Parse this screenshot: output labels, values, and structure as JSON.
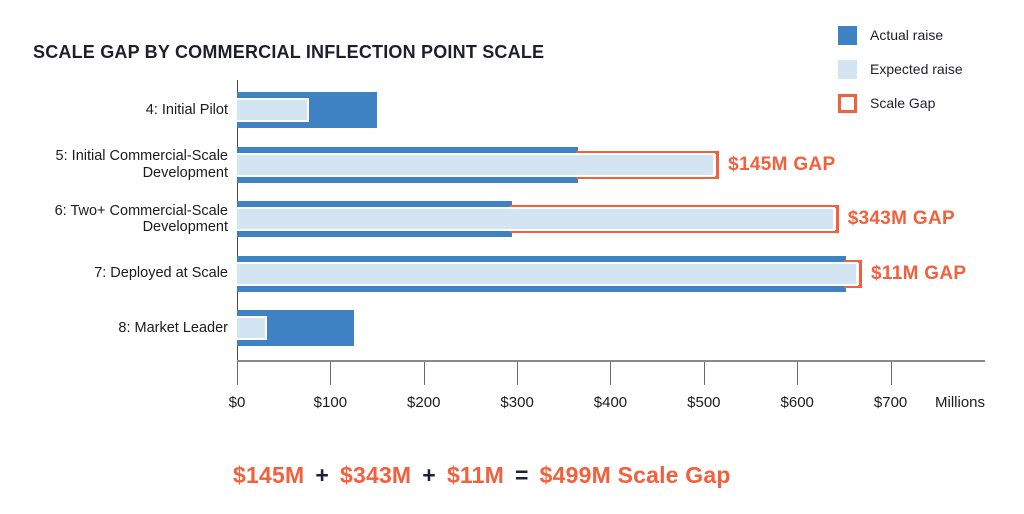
{
  "colors": {
    "actual_blue": "#3E82C4",
    "expected_blue": "#D3E5F2",
    "gap_orange": "#F2603C",
    "text_dark": "#1E1E2E",
    "axis_gray": "#8A8A8A"
  },
  "legend": {
    "items": [
      {
        "label": "Actual raise",
        "swatch": "actual-raise-swatch"
      },
      {
        "label": "Expected raise",
        "swatch": "expected-raise-swatch"
      },
      {
        "label": "Scale Gap",
        "swatch": "scale-gap-outline-swatch"
      }
    ]
  },
  "chart_data": {
    "type": "bar",
    "orientation": "horizontal",
    "title": "SCALE GAP BY COMMERCIAL INFLECTION POINT SCALE",
    "categories": [
      "4: Initial Pilot",
      "5: Initial Commercial-Scale Development",
      "6: Two+ Commercial-Scale Development",
      "7: Deployed at Scale",
      "8: Market Leader"
    ],
    "series": [
      {
        "name": "Actual raise",
        "values": [
          150,
          365,
          295,
          652,
          125
        ]
      },
      {
        "name": "Expected raise",
        "values": [
          75,
          510,
          638,
          663,
          30
        ]
      }
    ],
    "gap_annotations": [
      {
        "category_index": 1,
        "label": "$145M GAP",
        "value": 145
      },
      {
        "category_index": 2,
        "label": "$343M GAP",
        "value": 343
      },
      {
        "category_index": 3,
        "label": "$11M GAP",
        "value": 11
      }
    ],
    "x_ticks": [
      "$0",
      "$100",
      "$200",
      "$300",
      "$400",
      "$500",
      "$600",
      "$700"
    ],
    "x_axis_unit": "Millions",
    "xlim": [
      0,
      800
    ],
    "grid": false,
    "legend_position": "top-right"
  },
  "equation": {
    "terms": [
      {
        "text": "$145M",
        "kind": "value"
      },
      {
        "text": "+",
        "kind": "operator"
      },
      {
        "text": "$343M",
        "kind": "value"
      },
      {
        "text": "+",
        "kind": "operator"
      },
      {
        "text": "$11M",
        "kind": "value"
      },
      {
        "text": "=",
        "kind": "operator"
      },
      {
        "text": "$499M Scale Gap",
        "kind": "value"
      }
    ]
  }
}
